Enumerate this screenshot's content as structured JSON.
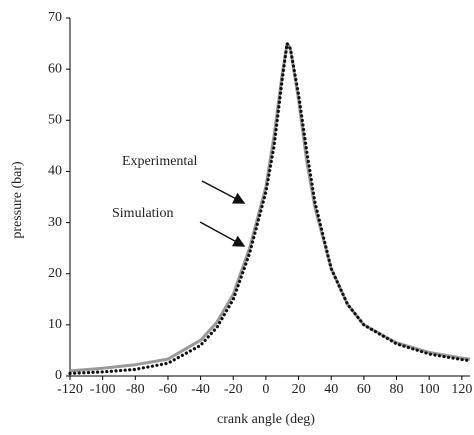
{
  "chart_data": {
    "type": "line",
    "x_label": "crank angle (deg)",
    "y_label": "pressure (bar)",
    "x": [
      -120,
      -100,
      -80,
      -60,
      -40,
      -30,
      -20,
      -10,
      0,
      5,
      10,
      13,
      15,
      20,
      25,
      30,
      40,
      50,
      60,
      80,
      100,
      120,
      125
    ],
    "series": [
      {
        "name": "Simulation",
        "color": "#999999",
        "style": "solid",
        "values": [
          1,
          1.5,
          2.2,
          3.3,
          7,
          10.5,
          16,
          25,
          37,
          47,
          59,
          65,
          64,
          54,
          42,
          33,
          21,
          14,
          10,
          6.5,
          4.6,
          3.5,
          3.3
        ]
      },
      {
        "name": "Experimental",
        "color": "#111111",
        "style": "dotted",
        "values": [
          0.5,
          0.8,
          1.3,
          2.5,
          6,
          9.5,
          15,
          24,
          36,
          45,
          58,
          65,
          64,
          55,
          44,
          34,
          21,
          14,
          10,
          6.3,
          4.3,
          3.2,
          3
        ]
      }
    ],
    "annotations": [
      "Experimental",
      "Simulation"
    ],
    "xlim": [
      -120,
      125
    ],
    "ylim": [
      0,
      70
    ],
    "xticks": [
      -120,
      -100,
      -80,
      -60,
      -40,
      -20,
      0,
      20,
      40,
      60,
      80,
      100,
      120
    ],
    "yticks": [
      0,
      10,
      20,
      30,
      40,
      50,
      60,
      70
    ],
    "grid": false
  }
}
